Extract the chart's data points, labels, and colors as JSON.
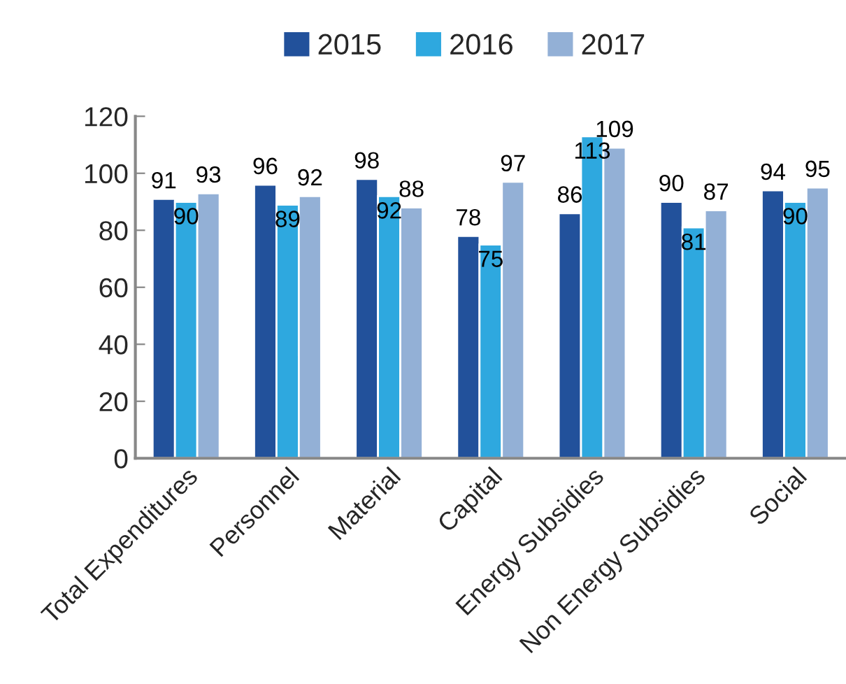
{
  "chart_data": {
    "type": "bar",
    "categories": [
      "Total Expenditures",
      "Personnel",
      "Material",
      "Capital",
      "Energy Subsidies",
      "Non Energy Subsidies",
      "Social"
    ],
    "series": [
      {
        "name": "2015",
        "color": "#22519b",
        "values": [
          91,
          96,
          98,
          78,
          86,
          90,
          94
        ]
      },
      {
        "name": "2016",
        "color": "#2ea8df",
        "values": [
          90,
          89,
          92,
          75,
          113,
          81,
          90
        ]
      },
      {
        "name": "2017",
        "color": "#93b0d6",
        "values": [
          93,
          92,
          88,
          97,
          109,
          87,
          95
        ]
      }
    ],
    "ylim": [
      0,
      120
    ],
    "yticks": [
      0,
      20,
      40,
      60,
      80,
      100,
      120
    ],
    "grid": false,
    "legend": "top",
    "data_labels": true
  }
}
